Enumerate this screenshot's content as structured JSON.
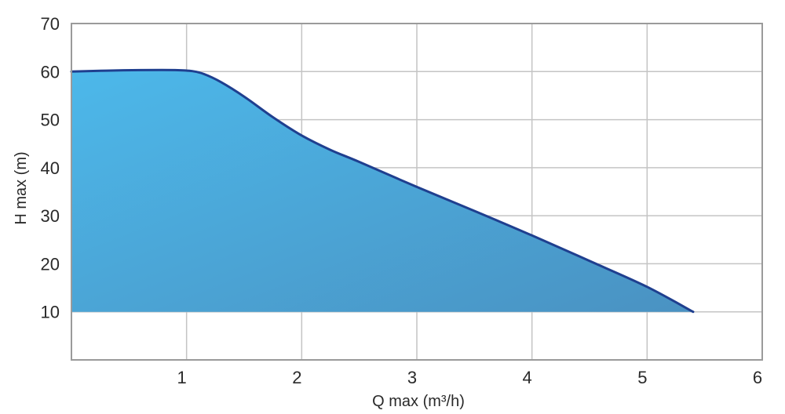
{
  "chart_data": {
    "type": "area",
    "xlabel": "Q max (m³/h)",
    "ylabel": "H max (m)",
    "xlim": [
      0,
      6
    ],
    "ylim": [
      0,
      70
    ],
    "x_ticks": [
      1,
      2,
      3,
      4,
      5,
      6
    ],
    "y_ticks": [
      10,
      20,
      30,
      40,
      50,
      60,
      70
    ],
    "area_baseline": 10,
    "grid": true,
    "fill_colors": [
      "#4cb8ea",
      "#4a92c2"
    ],
    "line_color": "#1f3f8f",
    "series": [
      {
        "x": [
          0,
          0.3,
          0.6,
          0.9,
          1.05,
          1.15,
          1.3,
          1.5,
          1.75,
          2.0,
          2.25,
          2.5,
          3.0,
          3.5,
          4.0,
          4.5,
          5.0,
          5.4
        ],
        "y": [
          60,
          60.2,
          60.3,
          60.3,
          60.1,
          59.5,
          57.8,
          54.8,
          50.5,
          46.7,
          43.7,
          41.2,
          36.0,
          31.0,
          25.9,
          20.6,
          15.2,
          10.0
        ]
      }
    ]
  }
}
